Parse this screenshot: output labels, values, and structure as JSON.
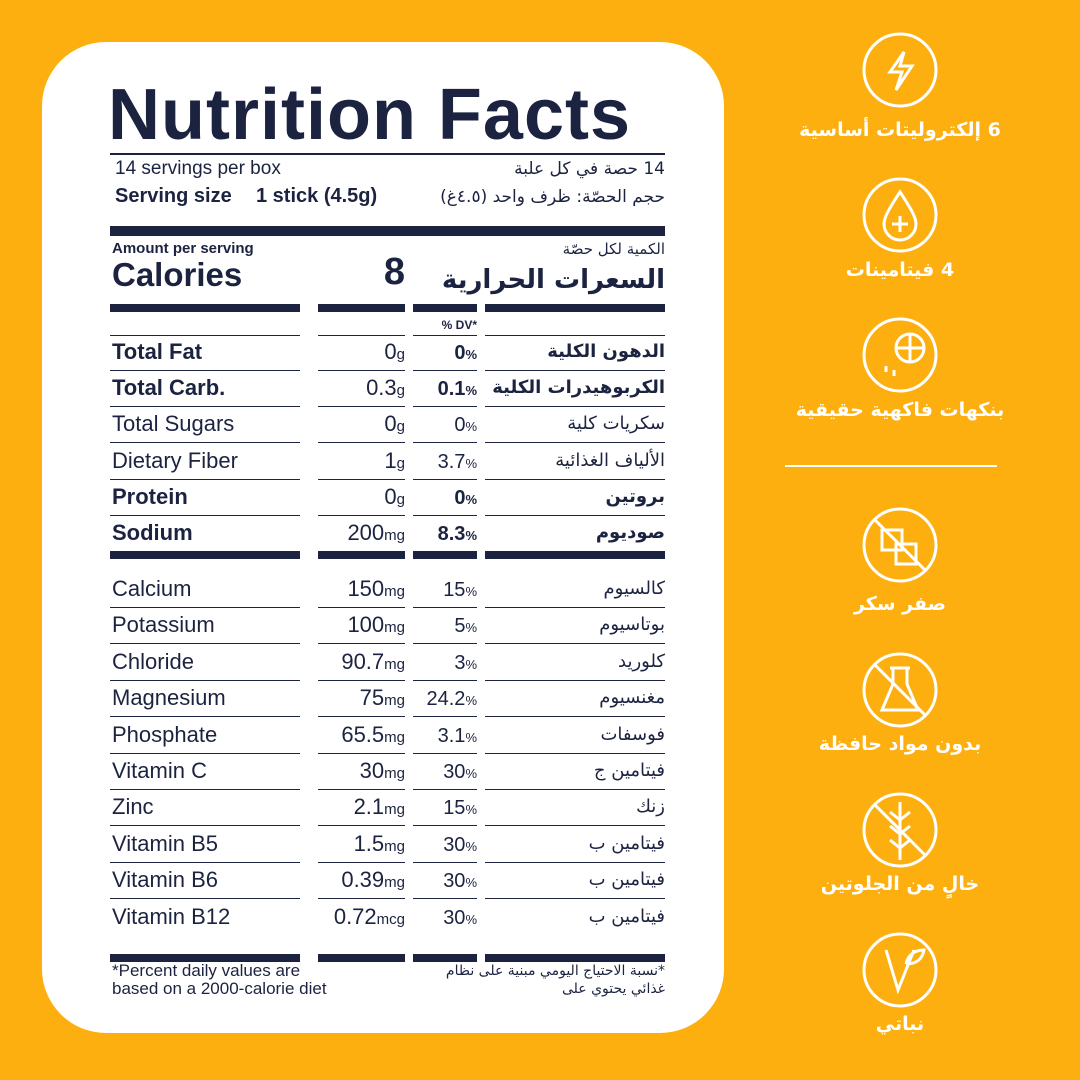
{
  "panel": {
    "title": "Nutrition Facts",
    "servings_en": "14 servings per box",
    "servings_ar": "14 حصة في كل علبة",
    "serving_size_label": "Serving size",
    "serving_size_value": "1 stick (4.5g)",
    "serving_size_ar": "حجم الحصّة: ظرف واحد (٤.٥غ)",
    "amount_en": "Amount per serving",
    "amount_ar": "الكمية لكل حصّة",
    "calories_en": "Calories",
    "calories_value": 8,
    "calories_ar": "السعرات الحرارية",
    "dv_header": "% DV*",
    "nutrients": [
      {
        "name": "Total Fat",
        "amount": 0,
        "unit": "g",
        "dv": 0,
        "dv_unit": "%",
        "name_ar": "الدهون الكلية",
        "bold": true
      },
      {
        "name": "Total Carb.",
        "amount": 0.3,
        "unit": "g",
        "dv": 0.1,
        "dv_unit": "%",
        "name_ar": "الكربوهيدرات الكلية",
        "bold": true
      },
      {
        "name": "Total Sugars",
        "amount": 0,
        "unit": "g",
        "dv": 0,
        "dv_unit": "%",
        "name_ar": "سكريات كلية",
        "bold": false
      },
      {
        "name": "Dietary Fiber",
        "amount": 1,
        "unit": "g",
        "dv": 3.7,
        "dv_unit": "%",
        "name_ar": "الألياف الغذائية",
        "bold": false
      },
      {
        "name": "Protein",
        "amount": 0,
        "unit": "g",
        "dv": 0,
        "dv_unit": "%",
        "name_ar": "بروتين",
        "bold": true
      },
      {
        "name": "Sodium",
        "amount": 200,
        "unit": "mg",
        "dv": 8.3,
        "dv_unit": "%",
        "name_ar": "صوديوم",
        "bold": true
      }
    ],
    "minerals": [
      {
        "name": "Calcium",
        "amount": 150,
        "unit": "mg",
        "dv": 15,
        "dv_unit": "%",
        "name_ar": "كالسيوم"
      },
      {
        "name": "Potassium",
        "amount": 100,
        "unit": "mg",
        "dv": 5,
        "dv_unit": "%",
        "name_ar": "بوتاسيوم"
      },
      {
        "name": "Chloride",
        "amount": 90.7,
        "unit": "mg",
        "dv": 3,
        "dv_unit": "%",
        "name_ar": "كلوريد"
      },
      {
        "name": "Magnesium",
        "amount": 75,
        "unit": "mg",
        "dv": 24.2,
        "dv_unit": "%",
        "name_ar": "مغنسيوم"
      },
      {
        "name": "Phosphate",
        "amount": 65.5,
        "unit": "mg",
        "dv": 3.1,
        "dv_unit": "%",
        "name_ar": "فوسفات"
      },
      {
        "name": "Vitamin C",
        "amount": 30,
        "unit": "mg",
        "dv": 30,
        "dv_unit": "%",
        "name_ar": "فيتامين ج"
      },
      {
        "name": "Zinc",
        "amount": 2.1,
        "unit": "mg",
        "dv": 15,
        "dv_unit": "%",
        "name_ar": "زنك"
      },
      {
        "name": "Vitamin B5",
        "amount": 1.5,
        "unit": "mg",
        "dv": 30,
        "dv_unit": "%",
        "name_ar": "فيتامين ب"
      },
      {
        "name": "Vitamin B6",
        "amount": 0.39,
        "unit": "mg",
        "dv": 30,
        "dv_unit": "%",
        "name_ar": "فيتامين ب"
      },
      {
        "name": "Vitamin B12",
        "amount": 0.72,
        "unit": "mcg",
        "dv": 30,
        "dv_unit": "%",
        "name_ar": "فيتامين ب"
      }
    ],
    "footnote_en": [
      "*Percent daily values are",
      "based on a 2000-calorie diet"
    ],
    "footnote_ar": [
      "*نسبة الاحتياج اليومي مبنية على نظام",
      "غذائي يحتوي على"
    ]
  },
  "features": [
    "6 إلكتروليتات أساسية",
    "4 فيتامينات",
    "بنكهات فاكهية حقيقية",
    "صفر سكر",
    "بدون مواد حافظة",
    "خالٍ من الجلوتين",
    "نباتي"
  ]
}
